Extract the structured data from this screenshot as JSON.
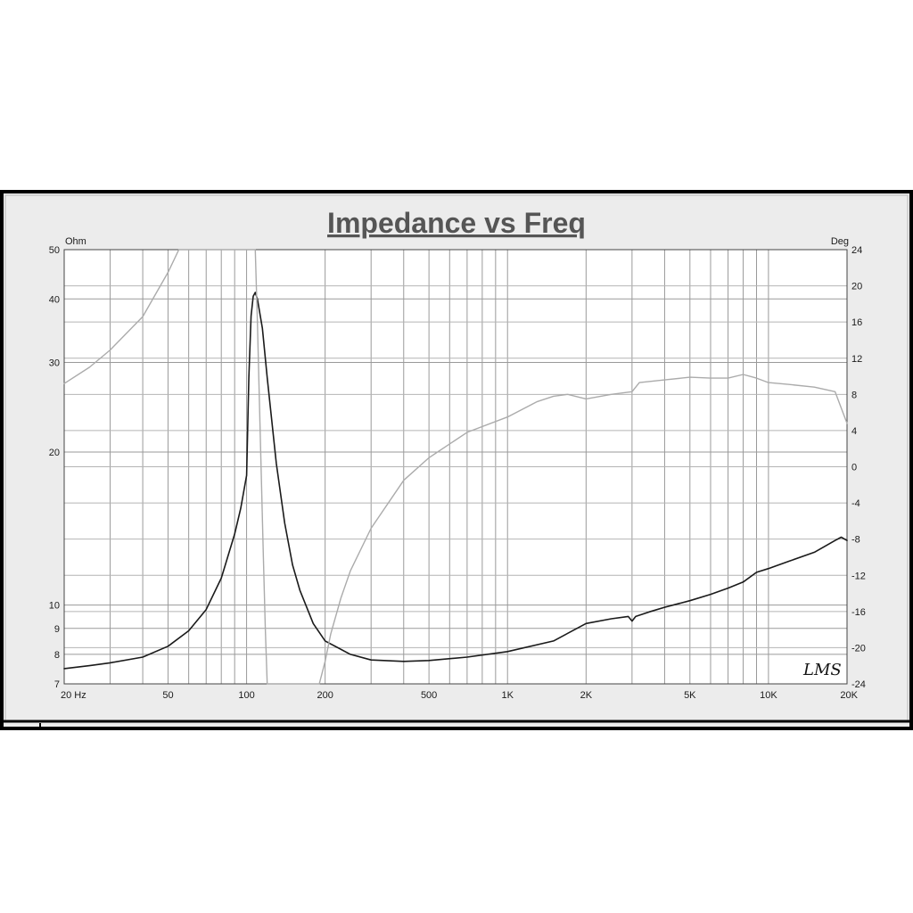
{
  "chart_data": {
    "type": "line",
    "title": "Impedance vs Freq",
    "x_scale": "log",
    "xlim": [
      20,
      20000
    ],
    "x_ticks": [
      {
        "value": 20,
        "label": "20  Hz"
      },
      {
        "value": 50,
        "label": "50"
      },
      {
        "value": 100,
        "label": "100"
      },
      {
        "value": 200,
        "label": "200"
      },
      {
        "value": 500,
        "label": "500"
      },
      {
        "value": 1000,
        "label": "1K"
      },
      {
        "value": 2000,
        "label": "2K"
      },
      {
        "value": 5000,
        "label": "5K"
      },
      {
        "value": 10000,
        "label": "10K"
      },
      {
        "value": 20000,
        "label": "20K"
      }
    ],
    "y_left": {
      "unit": "Ohm",
      "scale": "log",
      "range": [
        7,
        50
      ],
      "tick_labels": [
        50,
        40,
        30,
        20,
        10,
        9,
        8,
        7
      ]
    },
    "y_right": {
      "unit": "Deg",
      "scale": "linear",
      "range": [
        -24,
        24
      ],
      "tick_labels": [
        24,
        20,
        16,
        12,
        8,
        4,
        0,
        -4,
        -8,
        -12,
        -16,
        -20,
        -24
      ]
    },
    "grid": true,
    "signature": "LMS",
    "series": [
      {
        "color": "#1a1a1a",
        "axis": "left",
        "x": [
          20,
          25,
          30,
          40,
          50,
          60,
          70,
          80,
          90,
          95,
          100,
          102,
          104,
          106,
          108,
          110,
          115,
          120,
          130,
          140,
          150,
          160,
          180,
          200,
          250,
          300,
          400,
          500,
          700,
          1000,
          1500,
          2000,
          2500,
          2900,
          3000,
          3100,
          3500,
          4000,
          5000,
          6000,
          7000,
          8000,
          9000,
          10000,
          12000,
          15000,
          18000,
          19000,
          20000
        ],
        "y": [
          7.5,
          7.6,
          7.7,
          7.9,
          8.3,
          8.9,
          9.8,
          11.3,
          13.8,
          15.5,
          18.0,
          28.0,
          37.0,
          40.5,
          41.2,
          40.0,
          35.0,
          28.0,
          19.0,
          14.5,
          12.0,
          10.7,
          9.2,
          8.5,
          8.0,
          7.8,
          7.75,
          7.78,
          7.9,
          8.1,
          8.5,
          9.2,
          9.4,
          9.5,
          9.3,
          9.5,
          9.7,
          9.9,
          10.2,
          10.5,
          10.8,
          11.1,
          11.6,
          11.8,
          12.2,
          12.7,
          13.4,
          13.6,
          13.4
        ]
      },
      {
        "color": "#ababab",
        "axis": "right",
        "x": [
          20,
          25,
          30,
          40,
          50,
          55,
          60,
          70,
          80,
          90,
          100,
          105,
          108,
          110,
          112,
          114,
          116,
          118,
          120,
          180,
          190,
          200,
          210,
          230,
          250,
          300,
          400,
          500,
          700,
          1000,
          1300,
          1500,
          1700,
          2000,
          2500,
          3000,
          3200,
          4000,
          5000,
          6000,
          7000,
          8000,
          9000,
          10000,
          12000,
          15000,
          18000,
          19000,
          20000
        ],
        "y": [
          9.2,
          11.0,
          12.9,
          16.6,
          21.5,
          24.0,
          24.2,
          24.2,
          24.2,
          24.2,
          24.2,
          24.2,
          24.2,
          16.0,
          7.0,
          -1.5,
          -10.0,
          -18.0,
          -24.0,
          -24.0,
          -24.0,
          -21.5,
          -18.5,
          -14.5,
          -11.5,
          -6.8,
          -1.5,
          1.0,
          3.8,
          5.5,
          7.2,
          7.8,
          8.0,
          7.5,
          8.0,
          8.3,
          9.3,
          9.6,
          9.9,
          9.8,
          9.8,
          10.2,
          9.8,
          9.3,
          9.1,
          8.8,
          8.3,
          6.5,
          4.8
        ]
      }
    ]
  }
}
